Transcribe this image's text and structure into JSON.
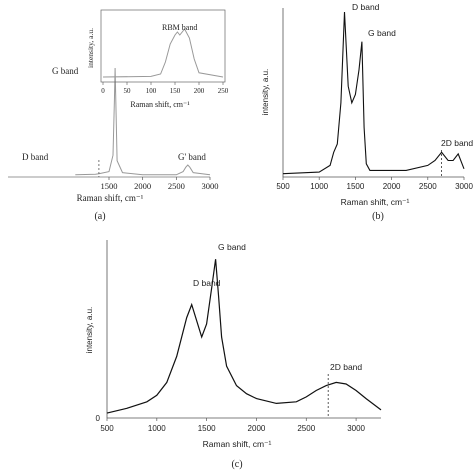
{
  "chart_data": [
    {
      "panel_label": "(a)",
      "type": "line",
      "xlabel": "Raman shift, cm⁻¹",
      "ylabel": "",
      "xlim": [
        0,
        3000
      ],
      "x_ticks": [
        1500,
        2000,
        2500,
        3000
      ],
      "x_tick_labels": [
        "1500",
        "2000",
        "2500",
        "3000"
      ],
      "annotations": [
        {
          "text": "D band",
          "x": 1350,
          "dashed_marker": true
        },
        {
          "text": "G band",
          "x": 1590
        },
        {
          "text": "G' band",
          "x": 2670
        }
      ],
      "series": [
        {
          "x": [
            1000,
            1300,
            1350,
            1500,
            1560,
            1580,
            1590,
            1600,
            1620,
            1700,
            2000,
            2500,
            2600,
            2640,
            2670,
            2700,
            2750,
            3000
          ],
          "y": [
            0.02,
            0.025,
            0.03,
            0.05,
            0.2,
            0.7,
            1.0,
            0.75,
            0.15,
            0.04,
            0.02,
            0.02,
            0.05,
            0.09,
            0.11,
            0.09,
            0.04,
            0.02
          ]
        }
      ],
      "inset": {
        "type": "line",
        "xlabel": "Raman shift, cm⁻¹",
        "ylabel": "intensity, a.u.",
        "xlim": [
          0,
          250
        ],
        "x_ticks": [
          0,
          50,
          100,
          150,
          200,
          250
        ],
        "x_tick_labels": [
          "0",
          "50",
          "100",
          "150",
          "200",
          "250"
        ],
        "annotations": [
          {
            "text": "RBM band",
            "x": 165
          }
        ],
        "series": [
          {
            "x": [
              0,
              100,
              120,
              130,
              140,
              150,
              155,
              160,
              170,
              180,
              190,
              200,
              250
            ],
            "y": [
              0.05,
              0.06,
              0.1,
              0.3,
              0.6,
              0.75,
              0.8,
              0.75,
              0.85,
              0.7,
              0.35,
              0.12,
              0.05
            ]
          }
        ]
      }
    },
    {
      "panel_label": "(b)",
      "type": "line",
      "xlabel": "Raman shift, cm⁻¹",
      "ylabel": "intensity, a.u.",
      "xlim": [
        500,
        3000
      ],
      "x_ticks": [
        500,
        1000,
        1500,
        2000,
        2500,
        3000
      ],
      "x_tick_labels": [
        "500",
        "1000",
        "1500",
        "2000",
        "2500",
        "3000"
      ],
      "annotations": [
        {
          "text": "D band",
          "x": 1350
        },
        {
          "text": "G band",
          "x": 1590
        },
        {
          "text": "2D band",
          "x": 2690,
          "dashed_marker": true
        }
      ],
      "series": [
        {
          "x": [
            500,
            1000,
            1150,
            1200,
            1250,
            1300,
            1350,
            1400,
            1450,
            1500,
            1550,
            1590,
            1620,
            1650,
            1700,
            1800,
            2200,
            2500,
            2600,
            2690,
            2780,
            2850,
            2920,
            3000
          ],
          "y": [
            0.02,
            0.03,
            0.07,
            0.15,
            0.2,
            0.45,
            1.0,
            0.55,
            0.45,
            0.5,
            0.65,
            0.82,
            0.3,
            0.08,
            0.04,
            0.04,
            0.04,
            0.07,
            0.1,
            0.15,
            0.1,
            0.1,
            0.14,
            0.05
          ]
        }
      ]
    },
    {
      "panel_label": "(c)",
      "type": "line",
      "xlabel": "Raman shift, cm⁻¹",
      "ylabel": "intensity, a.u.",
      "xlim": [
        500,
        3250
      ],
      "ylim_label": "0",
      "x_ticks": [
        500,
        1000,
        1500,
        2000,
        2500,
        3000
      ],
      "x_tick_labels": [
        "500",
        "1000",
        "1500",
        "2000",
        "2500",
        "3000"
      ],
      "annotations": [
        {
          "text": "D band",
          "x": 1350
        },
        {
          "text": "G band",
          "x": 1590
        },
        {
          "text": "2D band",
          "x": 2720,
          "dashed_marker": true
        }
      ],
      "series": [
        {
          "x": [
            500,
            700,
            900,
            1000,
            1100,
            1200,
            1300,
            1350,
            1400,
            1450,
            1500,
            1550,
            1590,
            1620,
            1650,
            1700,
            1800,
            1900,
            2000,
            2200,
            2400,
            2500,
            2600,
            2700,
            2800,
            2900,
            3000,
            3100,
            3250
          ],
          "y": [
            0.03,
            0.06,
            0.1,
            0.14,
            0.22,
            0.38,
            0.62,
            0.7,
            0.6,
            0.5,
            0.58,
            0.8,
            0.98,
            0.75,
            0.5,
            0.32,
            0.2,
            0.15,
            0.12,
            0.09,
            0.1,
            0.13,
            0.17,
            0.2,
            0.22,
            0.21,
            0.17,
            0.12,
            0.05
          ]
        }
      ]
    }
  ]
}
